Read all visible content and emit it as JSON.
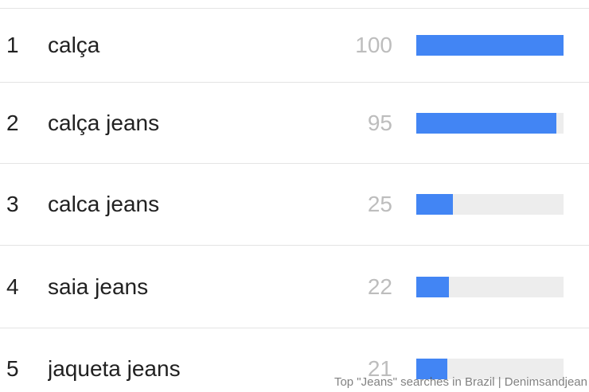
{
  "list": {
    "rows": [
      {
        "rank": "1",
        "term": "calça",
        "value": "100",
        "pct": 100
      },
      {
        "rank": "2",
        "term": "calça jeans",
        "value": "95",
        "pct": 95
      },
      {
        "rank": "3",
        "term": "calca jeans",
        "value": "25",
        "pct": 25
      },
      {
        "rank": "4",
        "term": "saia jeans",
        "value": "22",
        "pct": 22
      },
      {
        "rank": "5",
        "term": "jaqueta jeans",
        "value": "21",
        "pct": 21
      }
    ]
  },
  "caption": {
    "text": "Top \"Jeans\" searches in Brazil | Denimsandjean"
  },
  "colors": {
    "bar": "#4285f4",
    "track": "#ededed",
    "value_text": "#bdbdbd",
    "term_text": "#212121",
    "divider": "#e4e4e4"
  },
  "chart_data": {
    "type": "bar",
    "orientation": "horizontal",
    "categories": [
      "calça",
      "calça jeans",
      "calca jeans",
      "saia jeans",
      "jaqueta jeans"
    ],
    "ranks": [
      1,
      2,
      3,
      4,
      5
    ],
    "values": [
      100,
      95,
      25,
      22,
      21
    ],
    "value_range": [
      0,
      100
    ],
    "title": "Top \"Jeans\" searches in Brazil",
    "annotations": [
      "Top \"Jeans\" searches in Brazil | Denimsandjean"
    ],
    "legend": false,
    "grid": false,
    "bar_color": "#4285f4",
    "track_color": "#ededed"
  }
}
